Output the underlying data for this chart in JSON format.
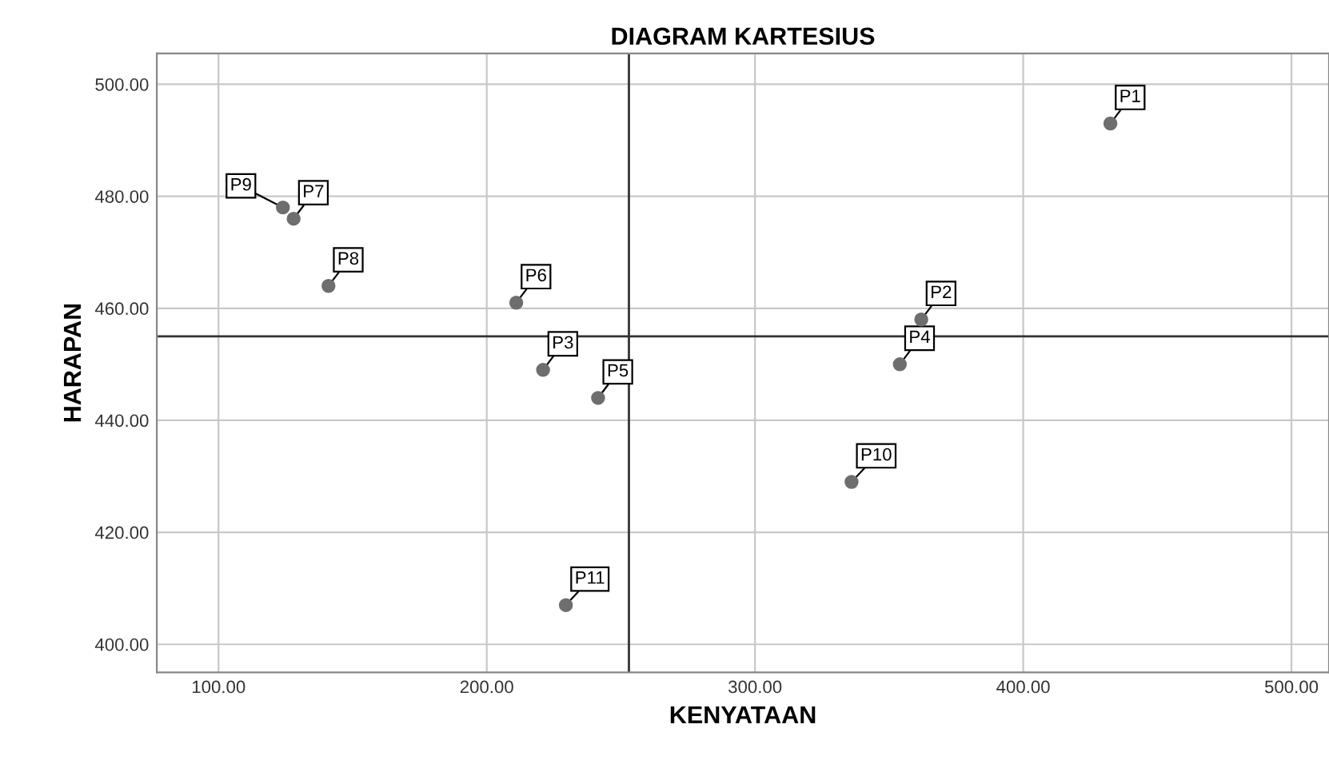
{
  "chart_data": {
    "type": "scatter",
    "title": "DIAGRAM KARTESIUS",
    "xlabel": "KENYATAAN",
    "ylabel": "HARAPAN",
    "x": [
      432.5,
      362,
      221,
      354,
      241.5,
      211,
      128,
      141,
      124,
      336,
      229.5
    ],
    "series": [
      {
        "color": "#6e6e6e",
        "values": [
          493,
          458,
          449,
          450,
          444,
          461,
          476,
          464,
          478,
          429,
          407
        ]
      }
    ],
    "annotations": [
      {
        "text": "P1",
        "x": 432.5,
        "y": 493
      },
      {
        "text": "P2",
        "x": 362,
        "y": 458
      },
      {
        "text": "P3",
        "x": 221,
        "y": 449
      },
      {
        "text": "P4",
        "x": 354,
        "y": 450
      },
      {
        "text": "P5",
        "x": 241.5,
        "y": 444
      },
      {
        "text": "P6",
        "x": 211,
        "y": 461
      },
      {
        "text": "P7",
        "x": 128,
        "y": 476
      },
      {
        "text": "P8",
        "x": 141,
        "y": 464
      },
      {
        "text": "P9",
        "x": 124,
        "y": 478
      },
      {
        "text": "P10",
        "x": 336,
        "y": 429
      },
      {
        "text": "P11",
        "x": 229.5,
        "y": 407
      }
    ],
    "ref_lines": [
      {
        "axis": "x",
        "value": 253,
        "color": "#333333"
      },
      {
        "axis": "y",
        "value": 455,
        "color": "#333333"
      }
    ],
    "xlim": [
      77,
      514
    ],
    "ylim": [
      395,
      505.5
    ],
    "xticks": [
      {
        "value": 100,
        "label": "100.00"
      },
      {
        "value": 200,
        "label": "200.00"
      },
      {
        "value": 300,
        "label": "300.00"
      },
      {
        "value": 400,
        "label": "400.00"
      },
      {
        "value": 500,
        "label": "500.00"
      }
    ],
    "yticks": [
      {
        "value": 400,
        "label": "400.00"
      },
      {
        "value": 420,
        "label": "420.00"
      },
      {
        "value": 440,
        "label": "440.00"
      },
      {
        "value": 460,
        "label": "460.00"
      },
      {
        "value": 480,
        "label": "480.00"
      },
      {
        "value": 500,
        "label": "500.00"
      }
    ],
    "grid": true,
    "marker": "circle"
  }
}
